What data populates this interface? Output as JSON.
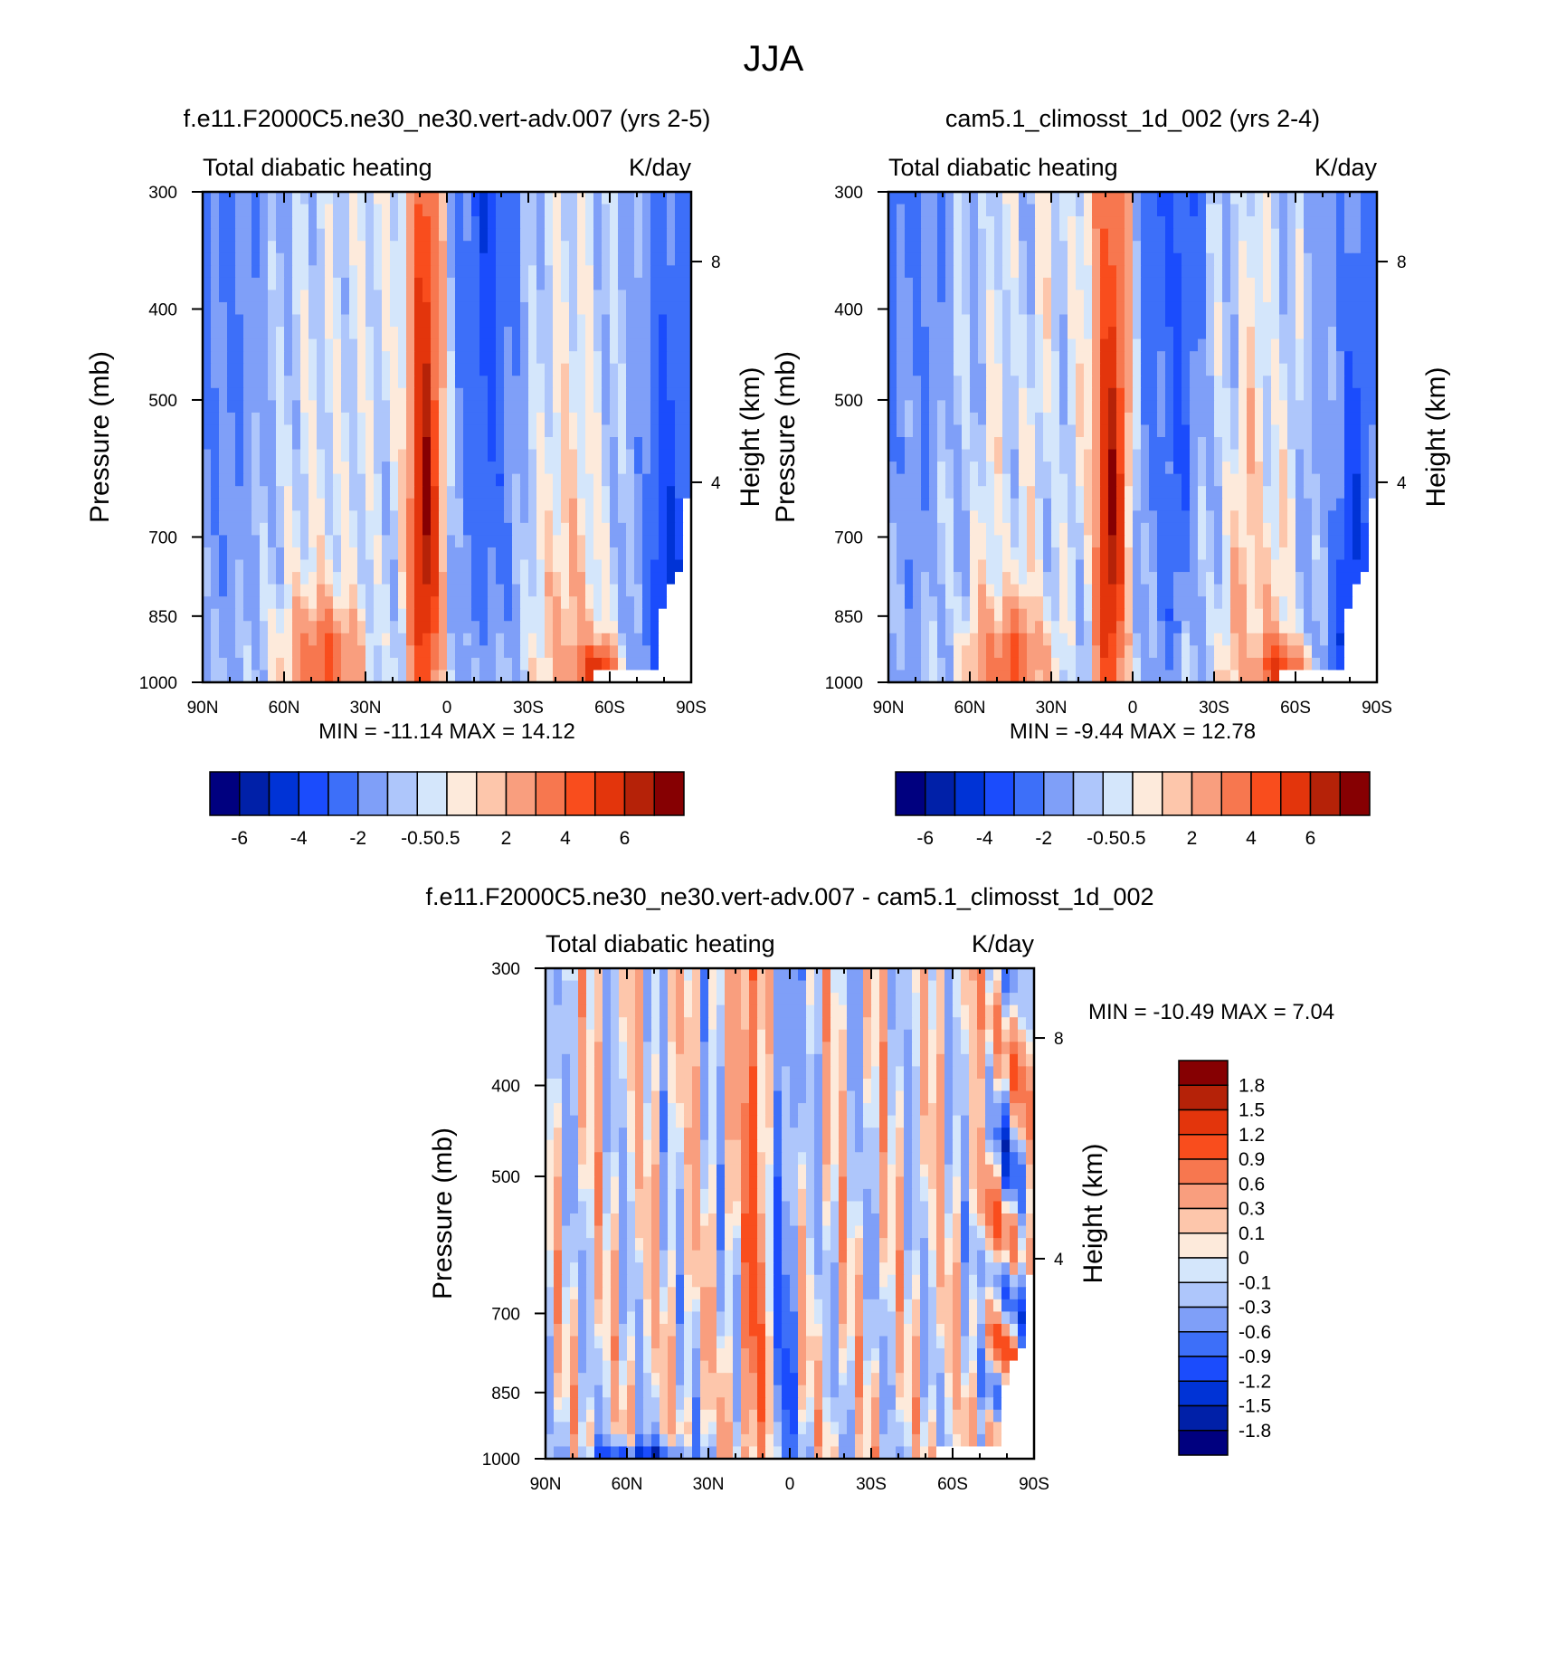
{
  "figure": {
    "title": "JJA"
  },
  "colors": {
    "full_scale": [
      "#00007f",
      "#0020a8",
      "#0033d6",
      "#1b4cfc",
      "#3d6ff9",
      "#7f9ff8",
      "#aec6fb",
      "#d4e6fb",
      "#fdeadb",
      "#fdc6ab",
      "#f99e7e",
      "#f7774f",
      "#f94d1d",
      "#e3350c",
      "#b52208",
      "#860002"
    ],
    "diff_scale": [
      "#00007f",
      "#0020a8",
      "#0033d6",
      "#1b4cfc",
      "#3d6ff9",
      "#7f9ff8",
      "#aec6fb",
      "#d4e6fb",
      "#fdeadb",
      "#fdc6ab",
      "#f99e7e",
      "#f7774f",
      "#f94d1d",
      "#e3350c",
      "#b52208",
      "#860002"
    ]
  },
  "chart_data": [
    {
      "type": "heatmap",
      "title": "f.e11.F2000C5.ne30_ne30.vert-adv.007 (yrs 2-5)",
      "left_label": "Total diabatic heating",
      "right_label": "K/day",
      "ylabel": "Pressure (mb)",
      "y2label": "Height (km)",
      "x_ticks": [
        "90N",
        "60N",
        "30N",
        "0",
        "30S",
        "60S",
        "90S"
      ],
      "x_values": [
        90,
        60,
        30,
        0,
        -30,
        -60,
        -90
      ],
      "y_ticks": [
        "300",
        "400",
        "500",
        "700",
        "850",
        "1000"
      ],
      "y_values": [
        300,
        400,
        500,
        700,
        850,
        1000
      ],
      "y_log": true,
      "y2_ticks": [
        "8",
        "4"
      ],
      "y2_pressure": [
        356,
        612
      ],
      "stats": "MIN = -11.14  MAX =  14.12",
      "min": -11.14,
      "max": 14.12,
      "colorbar_labels": [
        "-6",
        "-4",
        "-2",
        "-0.5",
        "0.5",
        "2",
        "4",
        "6"
      ],
      "colorbar_levels": [
        -6,
        -5,
        -4,
        -3,
        -2,
        -1,
        -0.5,
        0,
        0.5,
        1,
        2,
        3,
        4,
        5,
        6
      ]
    },
    {
      "type": "heatmap",
      "title": "cam5.1_climosst_1d_002 (yrs 2-4)",
      "left_label": "Total diabatic heating",
      "right_label": "K/day",
      "ylabel": "Pressure (mb)",
      "y2label": "Height (km)",
      "x_ticks": [
        "90N",
        "60N",
        "30N",
        "0",
        "30S",
        "60S",
        "90S"
      ],
      "x_values": [
        90,
        60,
        30,
        0,
        -30,
        -60,
        -90
      ],
      "y_ticks": [
        "300",
        "400",
        "500",
        "700",
        "850",
        "1000"
      ],
      "y_values": [
        300,
        400,
        500,
        700,
        850,
        1000
      ],
      "y_log": true,
      "y2_ticks": [
        "8",
        "4"
      ],
      "y2_pressure": [
        356,
        612
      ],
      "stats": "MIN =  -9.44  MAX =  12.78",
      "min": -9.44,
      "max": 12.78,
      "colorbar_labels": [
        "-6",
        "-4",
        "-2",
        "-0.5",
        "0.5",
        "2",
        "4",
        "6"
      ],
      "colorbar_levels": [
        -6,
        -5,
        -4,
        -3,
        -2,
        -1,
        -0.5,
        0,
        0.5,
        1,
        2,
        3,
        4,
        5,
        6
      ]
    },
    {
      "type": "heatmap",
      "title": "f.e11.F2000C5.ne30_ne30.vert-adv.007 - cam5.1_climosst_1d_002",
      "left_label": "Total diabatic heating",
      "right_label": "K/day",
      "ylabel": "Pressure (mb)",
      "y2label": "Height (km)",
      "x_ticks": [
        "90N",
        "60N",
        "30N",
        "0",
        "30S",
        "60S",
        "90S"
      ],
      "x_values": [
        90,
        60,
        30,
        0,
        -30,
        -60,
        -90
      ],
      "y_ticks": [
        "300",
        "400",
        "500",
        "700",
        "850",
        "1000"
      ],
      "y_values": [
        300,
        400,
        500,
        700,
        850,
        1000
      ],
      "y_log": true,
      "y2_ticks": [
        "8",
        "4"
      ],
      "y2_pressure": [
        356,
        612
      ],
      "stats": "MIN = -10.49  MAX =   7.04",
      "min": -10.49,
      "max": 7.04,
      "colorbar_labels": [
        "1.8",
        "1.5",
        "1.2",
        "0.9",
        "0.6",
        "0.3",
        "0.1",
        "0",
        "-0.1",
        "-0.3",
        "-0.6",
        "-0.9",
        "-1.2",
        "-1.5",
        "-1.8"
      ],
      "colorbar_levels": [
        -1.8,
        -1.5,
        -1.2,
        -0.9,
        -0.6,
        -0.3,
        -0.1,
        0,
        0.1,
        0.3,
        0.6,
        0.9,
        1.2,
        1.5,
        1.8
      ]
    }
  ]
}
